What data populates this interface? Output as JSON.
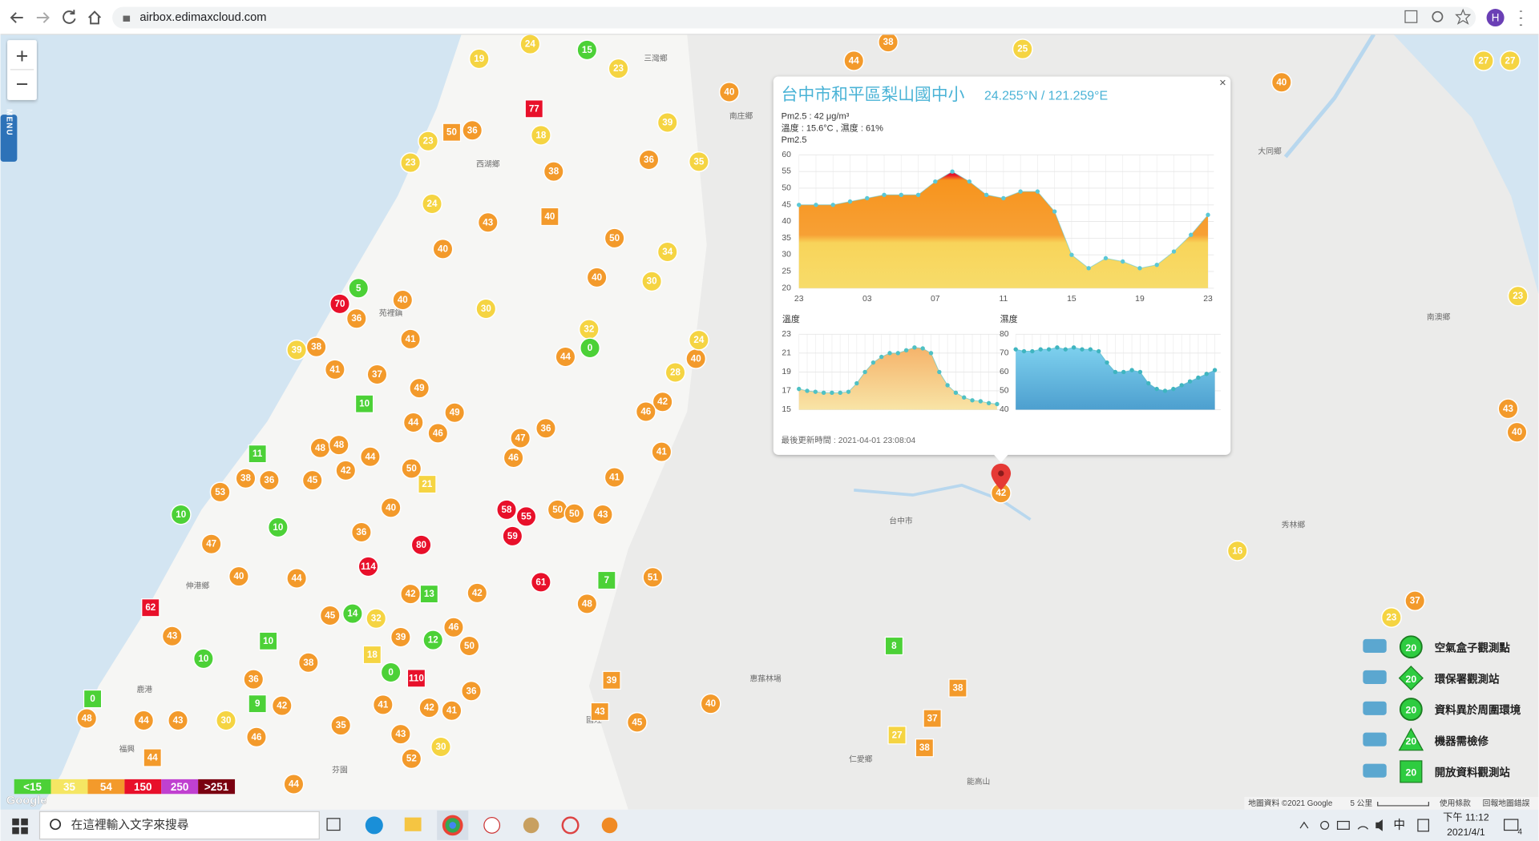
{
  "browser": {
    "url": "airbox.edimaxcloud.com",
    "profile": "H"
  },
  "map": {
    "zoom_in": "+",
    "zoom_out": "−",
    "menu": "MENU",
    "logo": "Google",
    "attribution": "地圖資料 ©2021 Google",
    "scale": "5 公里",
    "terms": "使用條款",
    "report": "回報地圖錯誤",
    "places": [
      "三灣鄉",
      "南庄鄉",
      "大同鄉",
      "南澳鄉",
      "秀林鄉",
      "台中市",
      "仁愛鄉",
      "能高山",
      "伸港鄉",
      "鹿港",
      "西湖鄉",
      "苑裡鎮",
      "惠蓀林場",
      "國姓",
      "福興",
      "芬園"
    ],
    "markers": [
      {
        "label": "24",
        "color": "#f5d442"
      },
      {
        "label": "15",
        "color": "#4cd137"
      },
      {
        "label": "19",
        "color": "#f5d442"
      },
      {
        "label": "23",
        "color": "#f5d442"
      },
      {
        "label": "77",
        "color": "#e8102a"
      },
      {
        "label": "50",
        "color": "#f39a2b"
      },
      {
        "label": "36",
        "color": "#f39a2b"
      },
      {
        "label": "18",
        "color": "#f5d442"
      },
      {
        "label": "39",
        "color": "#f5d442"
      },
      {
        "label": "36",
        "color": "#f39a2b"
      },
      {
        "label": "38",
        "color": "#f39a2b"
      },
      {
        "label": "23",
        "color": "#f5d442"
      },
      {
        "label": "23",
        "color": "#f5d442"
      },
      {
        "label": "24",
        "color": "#f5d442"
      },
      {
        "label": "43",
        "color": "#f39a2b"
      },
      {
        "label": "40",
        "color": "#f39a2b"
      },
      {
        "label": "50",
        "color": "#f39a2b"
      },
      {
        "label": "34",
        "color": "#f5d442"
      },
      {
        "label": "40",
        "color": "#f39a2b"
      },
      {
        "label": "5",
        "color": "#4cd137"
      },
      {
        "label": "70",
        "color": "#e8102a"
      },
      {
        "label": "40",
        "color": "#f39a2b"
      },
      {
        "label": "36",
        "color": "#f39a2b"
      },
      {
        "label": "30",
        "color": "#f5d442"
      },
      {
        "label": "40",
        "color": "#f39a2b"
      },
      {
        "label": "30",
        "color": "#f5d442"
      },
      {
        "label": "32",
        "color": "#f5d442"
      },
      {
        "label": "0",
        "color": "#4cd137"
      },
      {
        "label": "44",
        "color": "#f39a2b"
      },
      {
        "label": "41",
        "color": "#f39a2b"
      },
      {
        "label": "39",
        "color": "#f5d442"
      },
      {
        "label": "38",
        "color": "#f39a2b"
      },
      {
        "label": "41",
        "color": "#f39a2b"
      },
      {
        "label": "37",
        "color": "#f39a2b"
      },
      {
        "label": "49",
        "color": "#f39a2b"
      },
      {
        "label": "10",
        "color": "#4cd137"
      },
      {
        "label": "40",
        "color": "#f39a2b"
      },
      {
        "label": "28",
        "color": "#f5d442"
      },
      {
        "label": "24",
        "color": "#f5d442"
      },
      {
        "label": "42",
        "color": "#f39a2b"
      },
      {
        "label": "46",
        "color": "#f39a2b"
      },
      {
        "label": "36",
        "color": "#f39a2b"
      },
      {
        "label": "47",
        "color": "#f39a2b"
      },
      {
        "label": "41",
        "color": "#f39a2b"
      },
      {
        "label": "41",
        "color": "#f39a2b"
      },
      {
        "label": "46",
        "color": "#f39a2b"
      },
      {
        "label": "58",
        "color": "#e8102a"
      },
      {
        "label": "55",
        "color": "#e8102a"
      },
      {
        "label": "59",
        "color": "#e8102a"
      },
      {
        "label": "50",
        "color": "#f39a2b"
      },
      {
        "label": "50",
        "color": "#f39a2b"
      },
      {
        "label": "43",
        "color": "#f39a2b"
      },
      {
        "label": "11",
        "color": "#4cd137"
      },
      {
        "label": "10",
        "color": "#4cd137"
      },
      {
        "label": "114",
        "color": "#e8102a"
      },
      {
        "label": "80",
        "color": "#e8102a"
      },
      {
        "label": "61",
        "color": "#e8102a"
      },
      {
        "label": "7",
        "color": "#4cd137"
      },
      {
        "label": "51",
        "color": "#f39a2b"
      },
      {
        "label": "48",
        "color": "#f39a2b"
      },
      {
        "label": "62",
        "color": "#e8102a"
      },
      {
        "label": "43",
        "color": "#f39a2b"
      },
      {
        "label": "10",
        "color": "#4cd137"
      },
      {
        "label": "0",
        "color": "#4cd137"
      },
      {
        "label": "48",
        "color": "#f39a2b"
      },
      {
        "label": "110",
        "color": "#e8102a"
      },
      {
        "label": "0",
        "color": "#4cd137"
      },
      {
        "label": "8",
        "color": "#4cd137"
      },
      {
        "label": "38",
        "color": "#f39a2b"
      },
      {
        "label": "37",
        "color": "#f39a2b"
      },
      {
        "label": "38",
        "color": "#f39a2b"
      },
      {
        "label": "27",
        "color": "#f5d442"
      },
      {
        "label": "40",
        "color": "#f39a2b"
      },
      {
        "label": "45",
        "color": "#f39a2b"
      },
      {
        "label": "39",
        "color": "#f39a2b"
      },
      {
        "label": "43",
        "color": "#f39a2b"
      },
      {
        "label": "16",
        "color": "#f5d442"
      },
      {
        "label": "37",
        "color": "#f39a2b"
      },
      {
        "label": "23",
        "color": "#f5d442"
      },
      {
        "label": "43",
        "color": "#f39a2b"
      },
      {
        "label": "40",
        "color": "#f39a2b"
      },
      {
        "label": "23",
        "color": "#f5d442"
      },
      {
        "label": "40",
        "color": "#f39a2b"
      },
      {
        "label": "25",
        "color": "#f5d442"
      },
      {
        "label": "44",
        "color": "#f39a2b"
      },
      {
        "label": "38",
        "color": "#f39a2b"
      },
      {
        "label": "27",
        "color": "#f5d442"
      },
      {
        "label": "27",
        "color": "#f5d442"
      },
      {
        "label": "40",
        "color": "#f39a2b"
      },
      {
        "label": "35",
        "color": "#f5d442"
      },
      {
        "label": "44",
        "color": "#f39a2b"
      },
      {
        "label": "46",
        "color": "#f39a2b"
      },
      {
        "label": "49",
        "color": "#f39a2b"
      },
      {
        "label": "48",
        "color": "#f39a2b"
      },
      {
        "label": "48",
        "color": "#f39a2b"
      },
      {
        "label": "44",
        "color": "#f39a2b"
      },
      {
        "label": "42",
        "color": "#f39a2b"
      },
      {
        "label": "50",
        "color": "#f39a2b"
      },
      {
        "label": "21",
        "color": "#f5d442"
      },
      {
        "label": "38",
        "color": "#f39a2b"
      },
      {
        "label": "53",
        "color": "#f39a2b"
      },
      {
        "label": "36",
        "color": "#f39a2b"
      },
      {
        "label": "45",
        "color": "#f39a2b"
      },
      {
        "label": "40",
        "color": "#f39a2b"
      },
      {
        "label": "36",
        "color": "#f39a2b"
      },
      {
        "label": "10",
        "color": "#4cd137"
      },
      {
        "label": "47",
        "color": "#f39a2b"
      },
      {
        "label": "40",
        "color": "#f39a2b"
      },
      {
        "label": "44",
        "color": "#f39a2b"
      },
      {
        "label": "45",
        "color": "#f39a2b"
      },
      {
        "label": "14",
        "color": "#4cd137"
      },
      {
        "label": "32",
        "color": "#f5d442"
      },
      {
        "label": "42",
        "color": "#f39a2b"
      },
      {
        "label": "13",
        "color": "#4cd137"
      },
      {
        "label": "42",
        "color": "#f39a2b"
      },
      {
        "label": "46",
        "color": "#f39a2b"
      },
      {
        "label": "50",
        "color": "#f39a2b"
      },
      {
        "label": "12",
        "color": "#4cd137"
      },
      {
        "label": "39",
        "color": "#f39a2b"
      },
      {
        "label": "18",
        "color": "#f5d442"
      },
      {
        "label": "38",
        "color": "#f39a2b"
      },
      {
        "label": "10",
        "color": "#4cd137"
      },
      {
        "label": "36",
        "color": "#f39a2b"
      },
      {
        "label": "9",
        "color": "#4cd137"
      },
      {
        "label": "42",
        "color": "#f39a2b"
      },
      {
        "label": "30",
        "color": "#f5d442"
      },
      {
        "label": "43",
        "color": "#f39a2b"
      },
      {
        "label": "44",
        "color": "#f39a2b"
      },
      {
        "label": "44",
        "color": "#f39a2b"
      },
      {
        "label": "46",
        "color": "#f39a2b"
      },
      {
        "label": "35",
        "color": "#f39a2b"
      },
      {
        "label": "41",
        "color": "#f39a2b"
      },
      {
        "label": "43",
        "color": "#f39a2b"
      },
      {
        "label": "42",
        "color": "#f39a2b"
      },
      {
        "label": "41",
        "color": "#f39a2b"
      },
      {
        "label": "36",
        "color": "#f39a2b"
      },
      {
        "label": "52",
        "color": "#f39a2b"
      },
      {
        "label": "30",
        "color": "#f5d442"
      },
      {
        "label": "44",
        "color": "#f39a2b"
      },
      {
        "label": "42",
        "color": "#f39a2b"
      }
    ]
  },
  "popup": {
    "title": "台中市和平區梨山國中小",
    "coords": "24.255°N / 121.259°E",
    "pm25": "Pm2.5 : 42 μg/m³",
    "weather": "溫度 : 15.6°C , 濕度 : 61%",
    "close": "×",
    "updated": "最後更新時間 : 2021-04-01 23:08:04"
  },
  "chart_data": [
    {
      "type": "area",
      "title": "Pm2.5",
      "categories": [
        "23",
        null,
        null,
        null,
        "03",
        null,
        null,
        null,
        "07",
        null,
        null,
        null,
        "11",
        null,
        null,
        null,
        "15",
        null,
        null,
        null,
        "19",
        null,
        null,
        null,
        "23"
      ],
      "values": [
        45,
        45,
        45,
        46,
        47,
        48,
        48,
        48,
        52,
        55,
        52,
        48,
        47,
        49,
        49,
        43,
        30,
        26,
        29,
        28,
        26,
        27,
        31,
        36,
        42
      ],
      "ylim": [
        20,
        60
      ],
      "yticks": [
        20,
        25,
        30,
        35,
        40,
        45,
        50,
        55,
        60
      ],
      "color": "#5bc8d6",
      "grid": true
    },
    {
      "type": "area",
      "title": "溫度",
      "values": [
        17.2,
        17,
        16.9,
        16.8,
        16.8,
        16.8,
        16.9,
        17.8,
        19,
        20,
        20.6,
        21,
        21,
        21.3,
        21.6,
        21.5,
        21,
        19,
        17.6,
        16.8,
        16.3,
        16,
        15.9,
        15.7,
        15.6
      ],
      "ylim": [
        15,
        23
      ],
      "yticks": [
        15,
        17,
        19,
        21,
        23
      ],
      "color": "#4fc1c4",
      "grid": true
    },
    {
      "type": "area",
      "title": "濕度",
      "values": [
        72,
        71,
        71,
        72,
        72,
        73,
        72,
        73,
        72,
        72,
        71,
        65,
        60,
        60,
        61,
        60,
        54,
        51,
        50,
        51,
        53,
        55,
        57,
        59,
        61
      ],
      "ylim": [
        40,
        80
      ],
      "yticks": [
        40,
        50,
        60,
        70,
        80
      ],
      "color": "#3fb5c0",
      "grid": true
    }
  ],
  "legend": {
    "items": [
      {
        "label": "空氣盒子觀測點",
        "count": 20
      },
      {
        "label": "環保署觀測站",
        "count": 20
      },
      {
        "label": "資料異於周圍環境",
        "count": 20
      },
      {
        "label": "機器需檢修",
        "count": 20
      },
      {
        "label": "開放資料觀測站",
        "count": 20
      }
    ]
  },
  "color_scale": [
    {
      "label": "<15",
      "color": "#4cd137"
    },
    {
      "label": "35",
      "color": "#f5e663"
    },
    {
      "label": "54",
      "color": "#f39a2b"
    },
    {
      "label": "150",
      "color": "#e8102a"
    },
    {
      "label": "250",
      "color": "#c040d0"
    },
    {
      "label": ">251",
      "color": "#7a0010"
    }
  ],
  "taskbar": {
    "search": "在這裡輸入文字來搜尋",
    "ime": "中",
    "time": "下午 11:12",
    "date": "2021/4/1",
    "notifications": 4
  }
}
